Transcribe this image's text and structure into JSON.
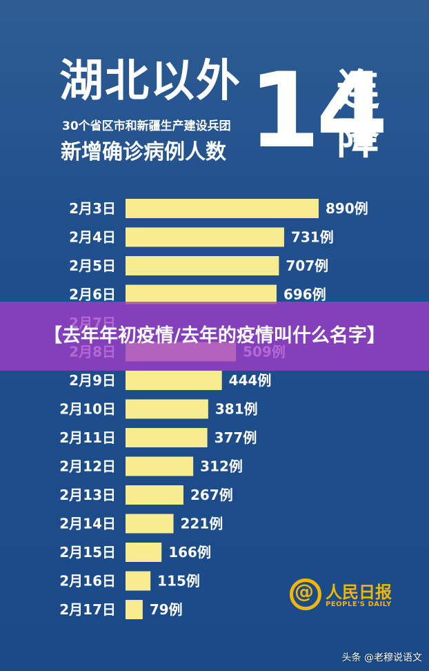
{
  "header": {
    "title": "湖北以外",
    "subtitle_line1": "30个省区市和新疆生产建设兵团",
    "subtitle_line2": "新增确诊病例人数",
    "big_number": "14",
    "side_text": [
      "连",
      "降"
    ]
  },
  "banner": {
    "text": "【去年年初疫情/去年的疫情叫什么名字】"
  },
  "logo": {
    "name": "人民日报",
    "english": "PEOPLE'S DAILY",
    "icon": "at-sign-icon",
    "accent_color": "#f2b705"
  },
  "watermark": "头条 @老穆说语文",
  "colors": {
    "background": "#1f4f8c",
    "bar": "#f7ec90"
  },
  "chart_data": {
    "type": "bar",
    "orientation": "horizontal",
    "categories": [
      "2月3日",
      "2月4日",
      "2月5日",
      "2月6日",
      "2月7日",
      "2月8日",
      "2月9日",
      "2月10日",
      "2月11日",
      "2月12日",
      "2月13日",
      "2月14日",
      "2月15日",
      "2月16日",
      "2月17日"
    ],
    "values": [
      890,
      731,
      707,
      696,
      null,
      509,
      444,
      381,
      377,
      312,
      267,
      221,
      166,
      115,
      79
    ],
    "value_labels": [
      "890例",
      "731例",
      "707例",
      "696例",
      "",
      "509例",
      "444例",
      "381例",
      "377例",
      "312例",
      "267例",
      "221例",
      "166例",
      "115例",
      "79例"
    ],
    "title": "",
    "xlabel": "",
    "ylabel": ""
  }
}
